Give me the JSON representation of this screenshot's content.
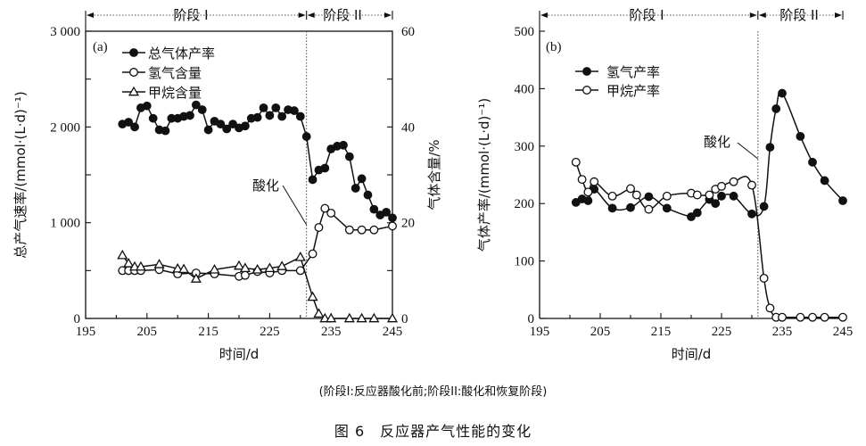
{
  "chart_data": [
    {
      "type": "line",
      "panel_label": "(a)",
      "xlabel": "时间/d",
      "ylabel": "总产气速率/(mmol·(L·d)⁻¹)",
      "ylabel_right": "气体含量/%",
      "xlim": [
        195,
        245
      ],
      "ylim": [
        0,
        3000
      ],
      "ylim_right": [
        0,
        60
      ],
      "xticks": [
        "195",
        "205",
        "215",
        "225",
        "235",
        "245"
      ],
      "yticks": [
        "0",
        "1 000",
        "2 000",
        "3 000"
      ],
      "yticks_right": [
        "0",
        "20",
        "40",
        "60"
      ],
      "stages": [
        {
          "label": "阶段 I",
          "from": 195,
          "to": 231
        },
        {
          "label": "阶段 II",
          "from": 231,
          "to": 245
        }
      ],
      "annotation": {
        "text": "酸化",
        "x": 231
      },
      "legend_position": "top-left",
      "series": [
        {
          "name": "总气体产率",
          "axis": "left",
          "marker": "filled-circle",
          "x": [
            201,
            202,
            203,
            204,
            205,
            206,
            207,
            208,
            209,
            210,
            211,
            212,
            213,
            214,
            215,
            216,
            217,
            218,
            219,
            220,
            221,
            222,
            223,
            224,
            225,
            226,
            227,
            228,
            229,
            230,
            231,
            232,
            233,
            234,
            235,
            236,
            237,
            238,
            239,
            240,
            241,
            242,
            243,
            244,
            245
          ],
          "values": [
            2030,
            2050,
            2000,
            2200,
            2220,
            2090,
            1970,
            1960,
            2090,
            2090,
            2110,
            2120,
            2230,
            2180,
            1970,
            2060,
            2030,
            1980,
            2030,
            1990,
            2010,
            2090,
            2100,
            2200,
            2120,
            2200,
            2110,
            2180,
            2170,
            2110,
            1900,
            1450,
            1550,
            1570,
            1770,
            1800,
            1810,
            1690,
            1360,
            1460,
            1290,
            1140,
            1080,
            1110,
            1050
          ]
        },
        {
          "name": "氢气含量",
          "axis": "right",
          "marker": "open-circle",
          "x": [
            201,
            202,
            203,
            204,
            207,
            210,
            213,
            216,
            220,
            221,
            223,
            225,
            227,
            230,
            232,
            233,
            234,
            235,
            238,
            240,
            242,
            245
          ],
          "values": [
            10,
            10,
            10,
            10,
            10.2,
            9.3,
            9.5,
            9.3,
            8.8,
            9,
            9.8,
            9.5,
            10,
            10,
            13.5,
            19,
            23,
            22,
            18.5,
            18.5,
            18.5,
            19.3
          ]
        },
        {
          "name": "甲烷含量",
          "axis": "right",
          "marker": "open-triangle",
          "x": [
            201,
            202,
            203,
            204,
            207,
            210,
            211,
            213,
            216,
            220,
            221,
            223,
            225,
            227,
            230,
            232,
            233,
            234,
            235,
            238,
            240,
            242,
            245
          ],
          "values": [
            13.2,
            11.5,
            10.8,
            10.8,
            11.3,
            10.4,
            10.3,
            8.3,
            10.2,
            11,
            10.5,
            10.2,
            10.5,
            10.9,
            12.8,
            4.5,
            1,
            0,
            0,
            0,
            0,
            0,
            0
          ]
        }
      ]
    },
    {
      "type": "line",
      "panel_label": "(b)",
      "xlabel": "时间/d",
      "ylabel": "气体产率/(mmol·(L·d)⁻¹)",
      "xlim": [
        195,
        245
      ],
      "ylim": [
        0,
        500
      ],
      "xticks": [
        "195",
        "205",
        "215",
        "225",
        "235",
        "245"
      ],
      "yticks": [
        "0",
        "100",
        "200",
        "300",
        "400",
        "500"
      ],
      "stages": [
        {
          "label": "阶段 I",
          "from": 195,
          "to": 231
        },
        {
          "label": "阶段 II",
          "from": 231,
          "to": 245
        }
      ],
      "annotation": {
        "text": "酸化",
        "x": 231
      },
      "legend_position": "top-left",
      "series": [
        {
          "name": "氢气产率",
          "marker": "filled-circle",
          "x": [
            201,
            202,
            203,
            204,
            207,
            210,
            213,
            216,
            220,
            221,
            223,
            224,
            225,
            227,
            230,
            232,
            233,
            234,
            235,
            238,
            240,
            242,
            245
          ],
          "values": [
            202,
            208,
            205,
            225,
            192,
            193,
            212,
            192,
            177,
            184,
            207,
            200,
            213,
            213,
            182,
            195,
            298,
            365,
            392,
            317,
            272,
            240,
            205
          ]
        },
        {
          "name": "甲烷产率",
          "marker": "open-circle",
          "x": [
            201,
            202,
            203,
            204,
            207,
            210,
            211,
            213,
            216,
            220,
            221,
            223,
            224,
            225,
            227,
            230,
            232,
            233,
            234,
            235,
            238,
            240,
            242,
            245
          ],
          "values": [
            272,
            242,
            220,
            238,
            213,
            226,
            215,
            190,
            213,
            218,
            215,
            215,
            225,
            230,
            238,
            232,
            70,
            18,
            2,
            2,
            2,
            2,
            2,
            2
          ]
        }
      ]
    }
  ],
  "note": "(阶段I:反应器酸化前;阶段II:酸化和恢复阶段)",
  "caption": "图 6　反应器产气性能的变化"
}
